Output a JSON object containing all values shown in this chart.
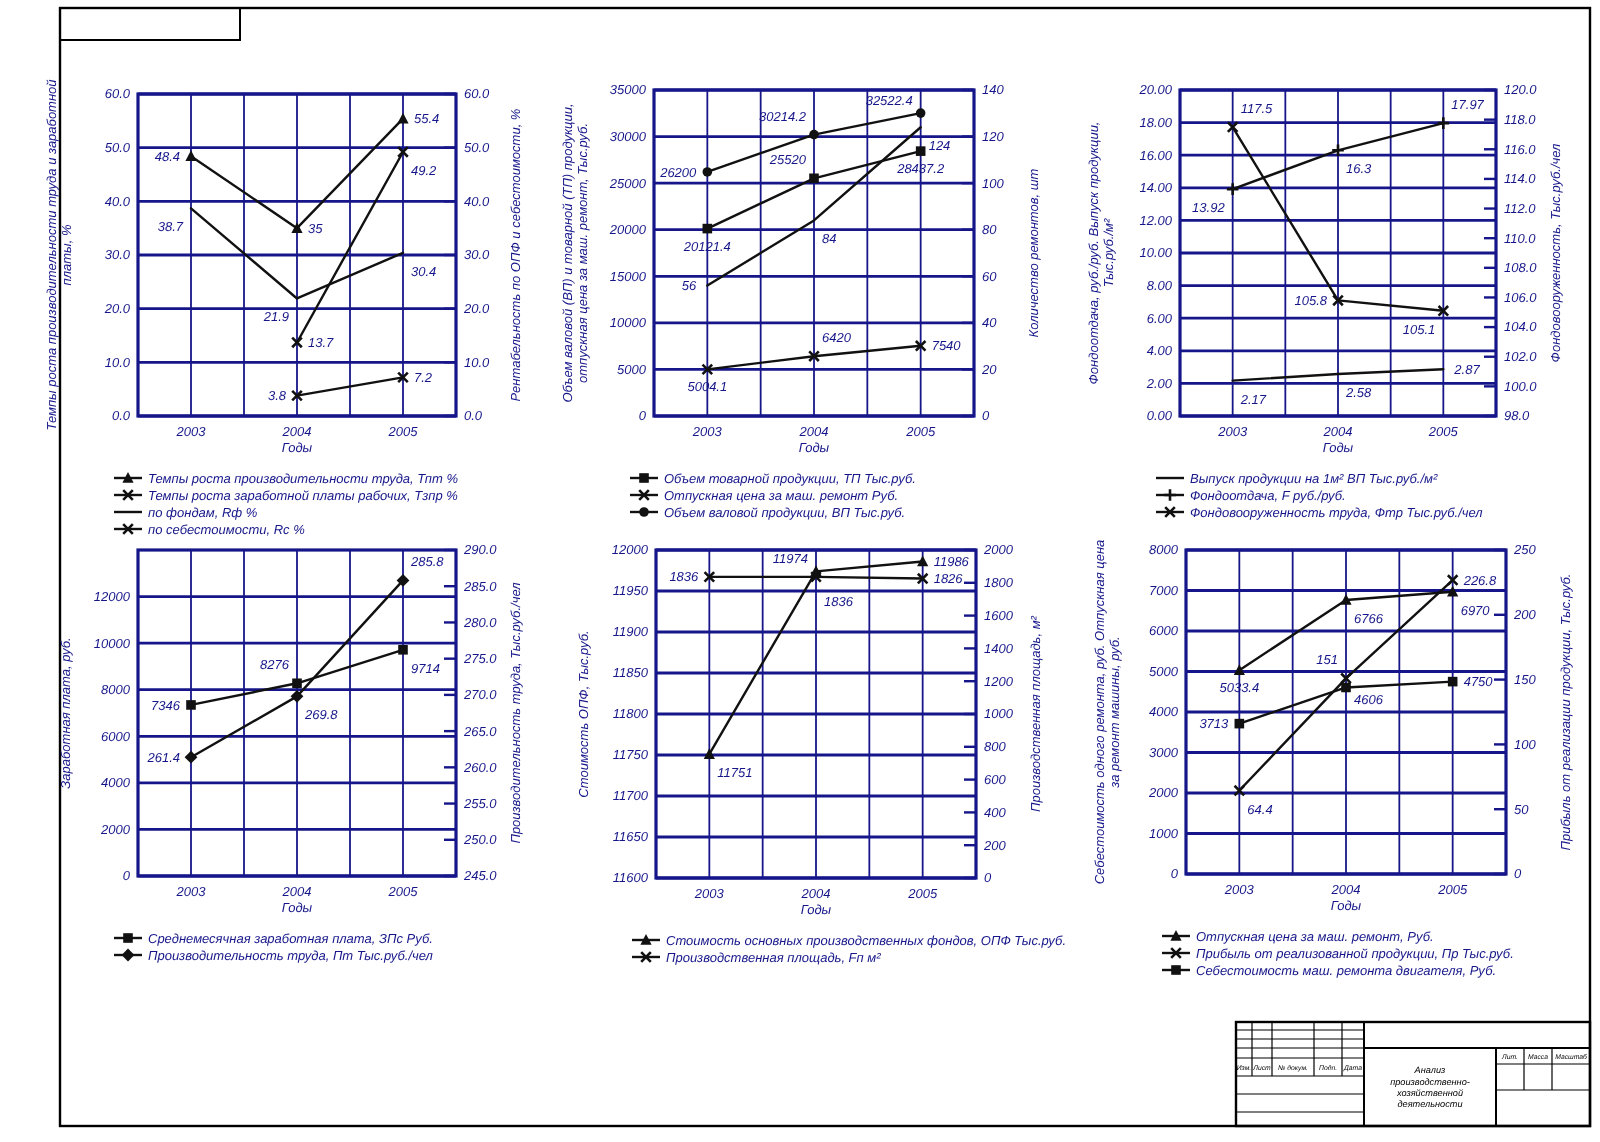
{
  "chart_data": [
    {
      "type": "line",
      "categories": [
        "2003",
        "2004",
        "2005"
      ],
      "xlabel": "Годы",
      "ylabel": "Темпы роста производительности труда и заработной платы, %",
      "y2label": "Рентабельность по ОПФ и себестоимости, %",
      "ylim": [
        0,
        60
      ],
      "yticks": [
        {
          "value": 0,
          "label": "0.0"
        },
        {
          "value": 10,
          "label": "10.0"
        },
        {
          "value": 20,
          "label": "20.0"
        },
        {
          "value": 30,
          "label": "30.0"
        },
        {
          "value": 40,
          "label": "40.0"
        },
        {
          "value": 50,
          "label": "50.0"
        },
        {
          "value": 60,
          "label": "60.0"
        }
      ],
      "y2lim": [
        0,
        60
      ],
      "y2ticks": [
        {
          "value": 0,
          "label": "0.0"
        },
        {
          "value": 10,
          "label": "10.0"
        },
        {
          "value": 20,
          "label": "20.0"
        },
        {
          "value": 30,
          "label": "30.0"
        },
        {
          "value": 40,
          "label": "40.0"
        },
        {
          "value": 50,
          "label": "50.0"
        },
        {
          "value": 60,
          "label": "60.0"
        }
      ],
      "grid": true,
      "legend": "bottom",
      "data_labels": true,
      "series": [
        {
          "name": "Темпы роста производительности труда, Тпт %",
          "color": "#111111",
          "marker": "triangle",
          "values": [
            48.4,
            35.0,
            55.4
          ]
        },
        {
          "name": "Темпы роста заработной платы рабочих, Тзпр %",
          "color": "#111111",
          "marker": "cross",
          "values": [
            null,
            13.7,
            49.2
          ]
        },
        {
          "name": "по фондам, Rф %",
          "color": "#111111",
          "marker": "none",
          "axis": "y2",
          "values": [
            38.7,
            21.9,
            30.4
          ]
        },
        {
          "name": "по себестоимости, Rс %",
          "color": "#111111",
          "marker": "cross",
          "axis": "y2",
          "values": [
            null,
            3.8,
            7.2
          ]
        }
      ]
    },
    {
      "type": "line",
      "categories": [
        "2003",
        "2004",
        "2005"
      ],
      "xlabel": "Годы",
      "ylabel": "Объем валовой (ВП) и товарной (ТП) продукции, отпускная цена за маш. ремонт, Тыс.руб.",
      "y2label": "Количество ремонтов, шт",
      "ylim": [
        0,
        35000
      ],
      "yticks": [
        0,
        5000,
        10000,
        15000,
        20000,
        25000,
        30000,
        35000
      ],
      "y2lim": [
        0,
        140
      ],
      "y2ticks": [
        0,
        20,
        40,
        60,
        80,
        100,
        120,
        140
      ],
      "grid": true,
      "legend": "bottom",
      "data_labels": true,
      "series": [
        {
          "name": "Объем товарной продукции, ТП Тыс.руб.",
          "color": "#111111",
          "marker": "square",
          "values": [
            20121.4,
            25520,
            28437.2
          ]
        },
        {
          "name": "Отпускная цена за маш. ремонт Руб.",
          "color": "#111111",
          "marker": "cross",
          "values": [
            5004.1,
            6420,
            7540
          ]
        },
        {
          "name": "Объем валовой продукции, ВП Тыс.руб.",
          "color": "#111111",
          "marker": "circle",
          "values": [
            26200,
            30214.2,
            32522.4
          ]
        },
        {
          "color": "#111111",
          "marker": "none",
          "axis": "y2",
          "values": [
            56,
            84,
            124
          ]
        }
      ]
    },
    {
      "type": "line",
      "categories": [
        "2003",
        "2004",
        "2005"
      ],
      "xlabel": "Годы",
      "ylabel": "Фондоотдача, руб./руб. Выпуск продукции, Тыс.руб./м²",
      "y2label": "Фондовооруженность, Тыс.руб./чел",
      "ylim": [
        0,
        20
      ],
      "yticks": [
        {
          "value": 0,
          "label": "0.00"
        },
        {
          "value": 2,
          "label": "2.00"
        },
        {
          "value": 4,
          "label": "4.00"
        },
        {
          "value": 6,
          "label": "6.00"
        },
        {
          "value": 8,
          "label": "8.00"
        },
        {
          "value": 10,
          "label": "10.00"
        },
        {
          "value": 12,
          "label": "12.00"
        },
        {
          "value": 14,
          "label": "14.00"
        },
        {
          "value": 16,
          "label": "16.00"
        },
        {
          "value": 18,
          "label": "18.00"
        },
        {
          "value": 20,
          "label": "20.00"
        }
      ],
      "y2lim": [
        98,
        120
      ],
      "y2ticks": [
        {
          "value": 98,
          "label": "98.0"
        },
        {
          "value": 100,
          "label": "100.0"
        },
        {
          "value": 102,
          "label": "102.0"
        },
        {
          "value": 104,
          "label": "104.0"
        },
        {
          "value": 106,
          "label": "106.0"
        },
        {
          "value": 108,
          "label": "108.0"
        },
        {
          "value": 110,
          "label": "110.0"
        },
        {
          "value": 112,
          "label": "112.0"
        },
        {
          "value": 114,
          "label": "114.0"
        },
        {
          "value": 116,
          "label": "116.0"
        },
        {
          "value": 118,
          "label": "118.0"
        },
        {
          "value": 120,
          "label": "120.0"
        }
      ],
      "grid": true,
      "legend": "bottom",
      "data_labels": true,
      "series": [
        {
          "name": "Выпуск продукции на 1м² ВП Тыс.руб./м²",
          "color": "#111111",
          "marker": "none",
          "values": [
            2.17,
            2.58,
            2.87
          ]
        },
        {
          "name": "Фондоотдача, F руб./руб.",
          "color": "#111111",
          "marker": "plus",
          "values": [
            13.92,
            16.3,
            17.97
          ]
        },
        {
          "name": "Фондовооруженность труда, Фтр Тыс.руб./чел",
          "color": "#111111",
          "marker": "cross",
          "axis": "y2",
          "values": [
            117.5,
            105.8,
            105.1
          ]
        }
      ]
    },
    {
      "type": "line",
      "categories": [
        "2003",
        "2004",
        "2005"
      ],
      "xlabel": "Годы",
      "ylabel": "Заработная плата, руб.",
      "y2label": "Производительность труда, Тыс.руб./чел",
      "ylim": [
        0,
        14000
      ],
      "yticks": [
        0,
        2000,
        4000,
        6000,
        8000,
        10000,
        12000
      ],
      "y2lim": [
        245,
        290
      ],
      "y2ticks": [
        {
          "value": 245,
          "label": "245.0"
        },
        {
          "value": 250,
          "label": "250.0"
        },
        {
          "value": 255,
          "label": "255.0"
        },
        {
          "value": 260,
          "label": "260.0"
        },
        {
          "value": 265,
          "label": "265.0"
        },
        {
          "value": 270,
          "label": "270.0"
        },
        {
          "value": 275,
          "label": "275.0"
        },
        {
          "value": 280,
          "label": "280.0"
        },
        {
          "value": 285,
          "label": "285.0"
        },
        {
          "value": 290,
          "label": "290.0"
        }
      ],
      "grid": true,
      "legend": "bottom",
      "data_labels": true,
      "series": [
        {
          "name": "Среднемесячная заработная плата, ЗПс Руб.",
          "color": "#111111",
          "marker": "square",
          "values": [
            7346,
            8276,
            9714
          ]
        },
        {
          "name": "Производительность труда, Пт Тыс.руб./чел",
          "color": "#111111",
          "marker": "diamond",
          "axis": "y2",
          "values": [
            261.4,
            269.8,
            285.8
          ]
        }
      ]
    },
    {
      "type": "line",
      "categories": [
        "2003",
        "2004",
        "2005"
      ],
      "xlabel": "Годы",
      "ylabel": "Стоимость ОПФ, Тыс.руб.",
      "y2label": "Производственная площадь, м²",
      "ylim": [
        11600,
        12000
      ],
      "yticks": [
        11600,
        11650,
        11700,
        11750,
        11800,
        11850,
        11900,
        11950,
        12000
      ],
      "y2lim": [
        0,
        2000
      ],
      "y2ticks": [
        0,
        200,
        400,
        600,
        800,
        1000,
        1200,
        1400,
        1600,
        1800,
        2000
      ],
      "grid": true,
      "legend": "bottom",
      "data_labels": true,
      "series": [
        {
          "name": "Стоимость основных производственных фондов, ОПФ Тыс.руб.",
          "color": "#111111",
          "marker": "triangle",
          "values": [
            11751,
            11974,
            11986
          ]
        },
        {
          "name": "Производственная площадь, Fп м²",
          "color": "#111111",
          "marker": "cross",
          "axis": "y2",
          "values": [
            1836,
            1836,
            1826
          ]
        }
      ]
    },
    {
      "type": "line",
      "categories": [
        "2003",
        "2004",
        "2005"
      ],
      "xlabel": "Годы",
      "ylabel": "Себестоимость одного ремонта, руб. Отпускная цена за ремонт машины, руб.",
      "y2label": "Прибыль от реализации продукции, Тыс.руб.",
      "ylim": [
        0,
        8000
      ],
      "yticks": [
        0,
        1000,
        2000,
        3000,
        4000,
        5000,
        6000,
        7000,
        8000
      ],
      "y2lim": [
        0,
        250
      ],
      "y2ticks": [
        0,
        50,
        100,
        150,
        200,
        250
      ],
      "grid": true,
      "legend": "bottom",
      "data_labels": true,
      "series": [
        {
          "name": "Отпускная цена за маш. ремонт, Руб.",
          "color": "#111111",
          "marker": "triangle",
          "values": [
            5033.4,
            6766,
            6970
          ]
        },
        {
          "name": "Прибыль от реализованной продукции, Пр Тыс.руб.",
          "color": "#111111",
          "marker": "cross",
          "axis": "y2",
          "values": [
            64.4,
            151,
            226.8
          ]
        },
        {
          "name": "Себестоимость маш. ремонта двигателя, Руб.",
          "color": "#111111",
          "marker": "square",
          "values": [
            3713,
            4606,
            4750
          ]
        }
      ]
    },
    {
      "type": "other",
      "title": "Анализ производственно-хозяйственной деятельности",
      "annotations": [
        "Изм.",
        "Лист",
        "№ докум.",
        "Подп.",
        "Дата",
        "Лит.",
        "Масса",
        "Масштаб"
      ]
    }
  ]
}
